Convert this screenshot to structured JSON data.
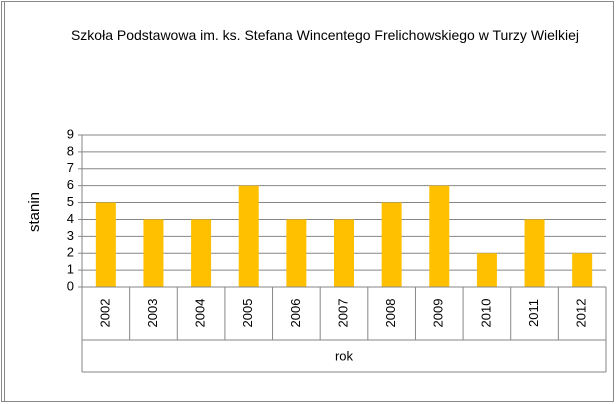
{
  "chart_data": {
    "type": "bar",
    "title": "Szkoła Podstawowa im. ks. Stefana Wincentego Frelichowskiego w Turzy Wielkiej",
    "x_label": "rok",
    "y_label": "stanin",
    "categories": [
      "2002",
      "2003",
      "2004",
      "2005",
      "2006",
      "2007",
      "2008",
      "2009",
      "2010",
      "2011",
      "2012"
    ],
    "values": [
      5,
      4,
      4,
      6,
      4,
      4,
      5,
      6,
      2,
      4,
      2
    ],
    "color": "#ffc000",
    "ylim": [
      0,
      9
    ],
    "yticks": [
      0,
      1,
      2,
      3,
      4,
      5,
      6,
      7,
      8,
      9
    ],
    "grid": true
  }
}
